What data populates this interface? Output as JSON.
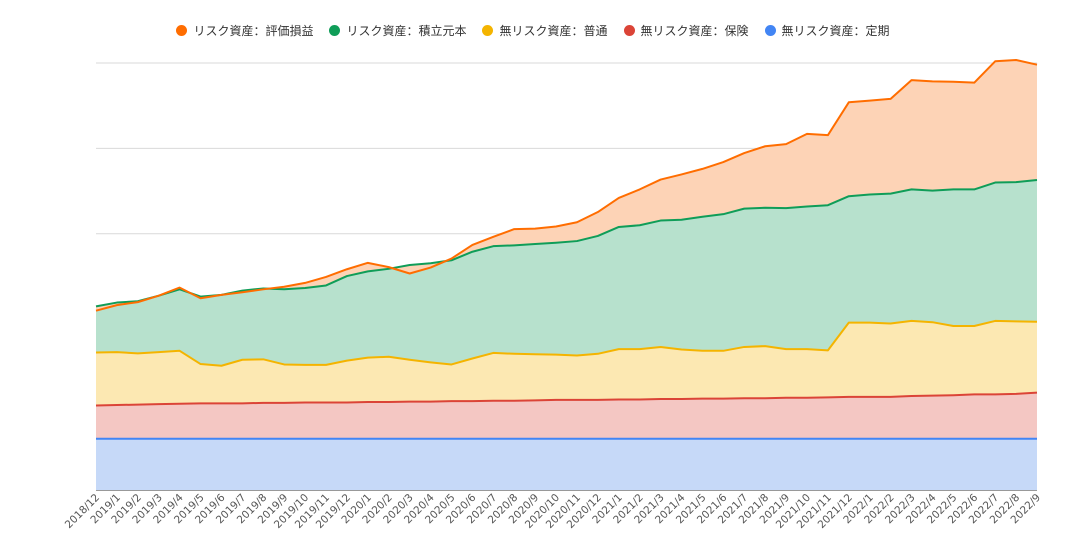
{
  "chart_data": {
    "type": "area",
    "stacked": true,
    "title": "",
    "xlabel": "",
    "ylabel": "",
    "grid": true,
    "legend_position": "top",
    "y_axis_labels_visible": false,
    "x": [
      "2018/12",
      "2019/1",
      "2019/2",
      "2019/3",
      "2019/4",
      "2019/5",
      "2019/6",
      "2019/7",
      "2019/8",
      "2019/9",
      "2019/10",
      "2019/11",
      "2019/12",
      "2020/1",
      "2020/2",
      "2020/3",
      "2020/4",
      "2020/5",
      "2020/6",
      "2020/7",
      "2020/8",
      "2020/9",
      "2020/10",
      "2020/11",
      "2020/12",
      "2021/1",
      "2021/2",
      "2021/3",
      "2021/4",
      "2021/5",
      "2021/6",
      "2021/7",
      "2021/8",
      "2021/9",
      "2021/10",
      "2021/11",
      "2021/12",
      "2022/1",
      "2022/2",
      "2022/3",
      "2022/4",
      "2022/5",
      "2022/6",
      "2022/7",
      "2022/8",
      "2022/9"
    ],
    "ylim": [
      0,
      500
    ],
    "series": [
      {
        "name": "無リスク資産：定期",
        "color": "#4285f4",
        "fill": "#c6d9f8",
        "values": [
          60,
          60,
          60,
          60,
          60,
          60,
          60,
          60,
          60,
          60,
          60,
          60,
          60,
          60,
          60,
          60,
          60,
          60,
          60,
          60,
          60,
          60,
          60,
          60,
          60,
          60,
          60,
          60,
          60,
          60,
          60,
          60,
          60,
          60,
          60,
          60,
          60,
          60,
          60,
          60,
          60,
          60,
          60,
          60,
          60,
          60
        ]
      },
      {
        "name": "無リスク資産：保険",
        "color": "#db4437",
        "fill": "#f4c7c3",
        "values": [
          39,
          39.5,
          40,
          40.5,
          41,
          41.5,
          41.5,
          41.5,
          42,
          42,
          42.5,
          42.5,
          42.5,
          43,
          43,
          43.5,
          43.5,
          44,
          44,
          44.5,
          44.5,
          45,
          45.5,
          45.5,
          45.5,
          46,
          46,
          46.5,
          46.5,
          47,
          47,
          47.5,
          47.5,
          48,
          48,
          48.5,
          49,
          49,
          49,
          50,
          50.5,
          51,
          52,
          52,
          52.5,
          54
        ]
      },
      {
        "name": "無リスク資産：普通",
        "color": "#f4b400",
        "fill": "#fce8b2",
        "values": [
          62,
          62,
          60,
          61,
          62,
          46,
          44,
          51,
          51,
          45,
          44,
          44,
          49,
          52,
          53,
          49,
          46,
          43,
          50,
          56,
          55,
          54,
          53,
          52,
          54,
          59,
          59,
          61,
          58,
          56,
          56,
          60,
          61,
          57,
          57,
          55,
          87,
          87,
          86,
          88,
          86,
          81,
          80,
          86,
          85,
          83
        ]
      },
      {
        "name": "リスク資産：積立元本",
        "color": "#0f9d58",
        "fill": "#b7e1cd",
        "values": [
          54,
          58,
          61,
          66,
          72,
          79,
          83,
          81,
          83,
          88,
          90,
          93,
          99,
          101,
          103,
          111,
          116,
          122,
          125,
          125,
          127,
          129,
          131,
          134,
          138,
          143,
          145,
          148,
          152,
          157,
          160,
          162,
          162,
          165,
          167,
          170,
          148,
          150,
          152,
          154,
          154,
          160,
          160,
          162,
          163,
          166
        ]
      },
      {
        "name": "リスク資産：評価損益",
        "color": "#ff6d00",
        "fill": "#fdd3b6",
        "values": [
          -5,
          -3,
          -1,
          0,
          2,
          -2,
          0,
          -2,
          -1,
          3,
          6,
          10,
          8,
          10,
          2,
          -10,
          -5,
          2,
          8,
          11,
          19,
          18,
          19,
          22,
          28,
          34,
          42,
          48,
          53,
          56,
          61,
          65,
          72,
          75,
          85,
          82,
          110,
          110,
          111,
          128,
          128,
          126,
          125,
          142,
          143,
          135
        ]
      }
    ]
  },
  "legend_order": [
    {
      "label": "リスク資産：評価損益",
      "color": "#ff6d00"
    },
    {
      "label": "リスク資産：積立元本",
      "color": "#0f9d58"
    },
    {
      "label": "無リスク資産：普通",
      "color": "#f4b400"
    },
    {
      "label": "無リスク資産：保険",
      "color": "#db4437"
    },
    {
      "label": "無リスク資産：定期",
      "color": "#4285f4"
    }
  ]
}
